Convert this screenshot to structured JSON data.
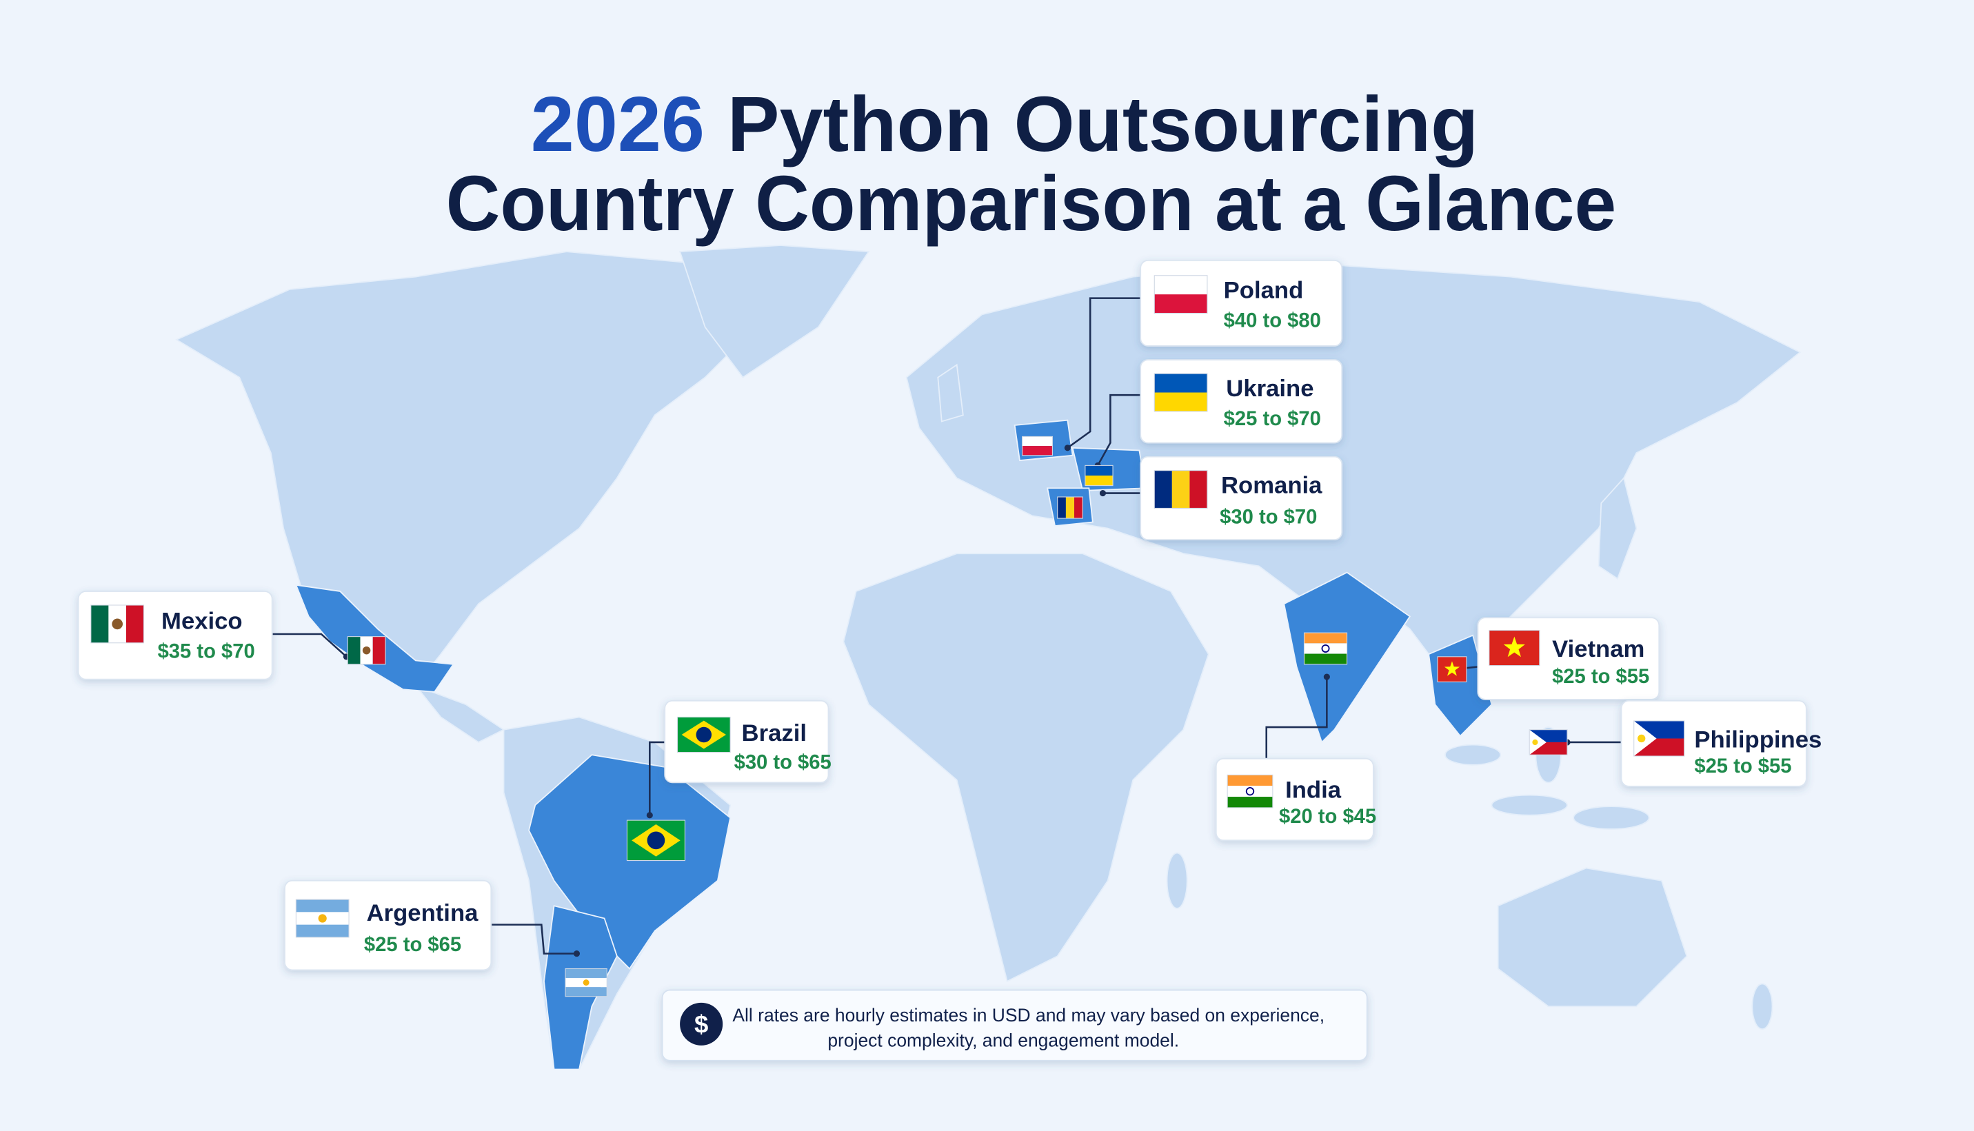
{
  "title": {
    "year": "2026",
    "line1": "Python Outsourcing",
    "line2": "Country Comparison at a Glance"
  },
  "countries": [
    {
      "name": "Poland",
      "rate": "$40 to $80"
    },
    {
      "name": "Ukraine",
      "rate": "$25 to $70"
    },
    {
      "name": "Romania",
      "rate": "$30 to $70"
    },
    {
      "name": "Mexico",
      "rate": "$35 to $70"
    },
    {
      "name": "Brazil",
      "rate": "$30 to $65"
    },
    {
      "name": "Argentina",
      "rate": "$25 to $65"
    },
    {
      "name": "India",
      "rate": "$20 to $45"
    },
    {
      "name": "Vietnam",
      "rate": "$25 to $55"
    },
    {
      "name": "Philippines",
      "rate": "$25 to $55"
    }
  ],
  "footnote": {
    "icon": "$",
    "line1": "All rates are hourly estimates in USD and may vary based on experience,",
    "line2": "project complexity, and engagement model."
  }
}
